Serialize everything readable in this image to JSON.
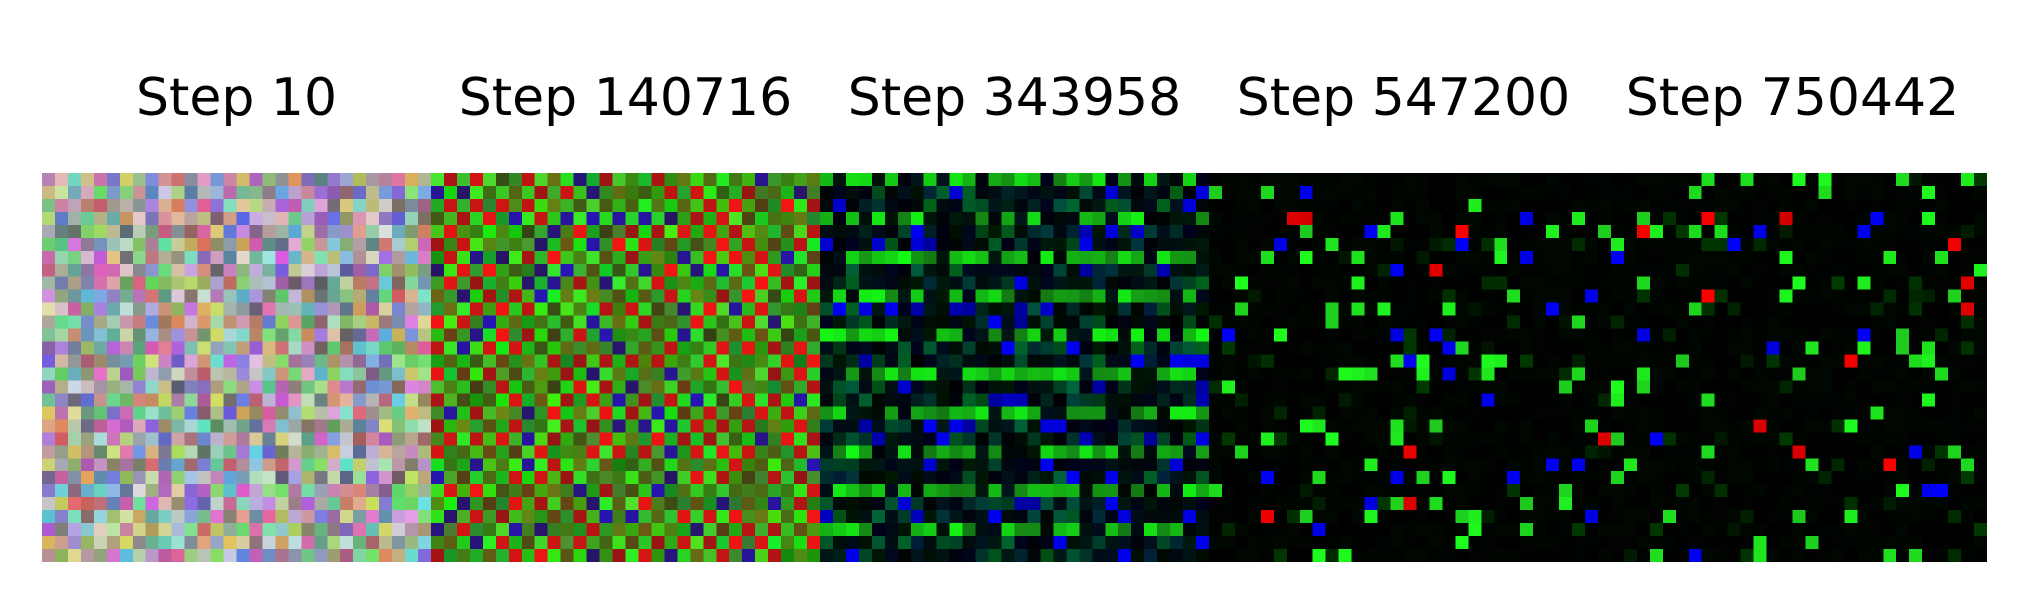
{
  "figure": {
    "steps": [
      {
        "label": "Step 10",
        "style": "noise"
      },
      {
        "label": "Step 140716",
        "style": "checker-rg"
      },
      {
        "label": "Step 343958",
        "style": "stripes"
      },
      {
        "label": "Step 547200",
        "style": "sparse"
      },
      {
        "label": "Step 750442",
        "style": "sparse"
      }
    ],
    "colors": {
      "background": "#ffffff",
      "label_text": "#000000",
      "pixel_green": "#39e639",
      "pixel_red": "#e02020",
      "pixel_blue": "#1a1aff",
      "panel_black": "#000000"
    }
  }
}
